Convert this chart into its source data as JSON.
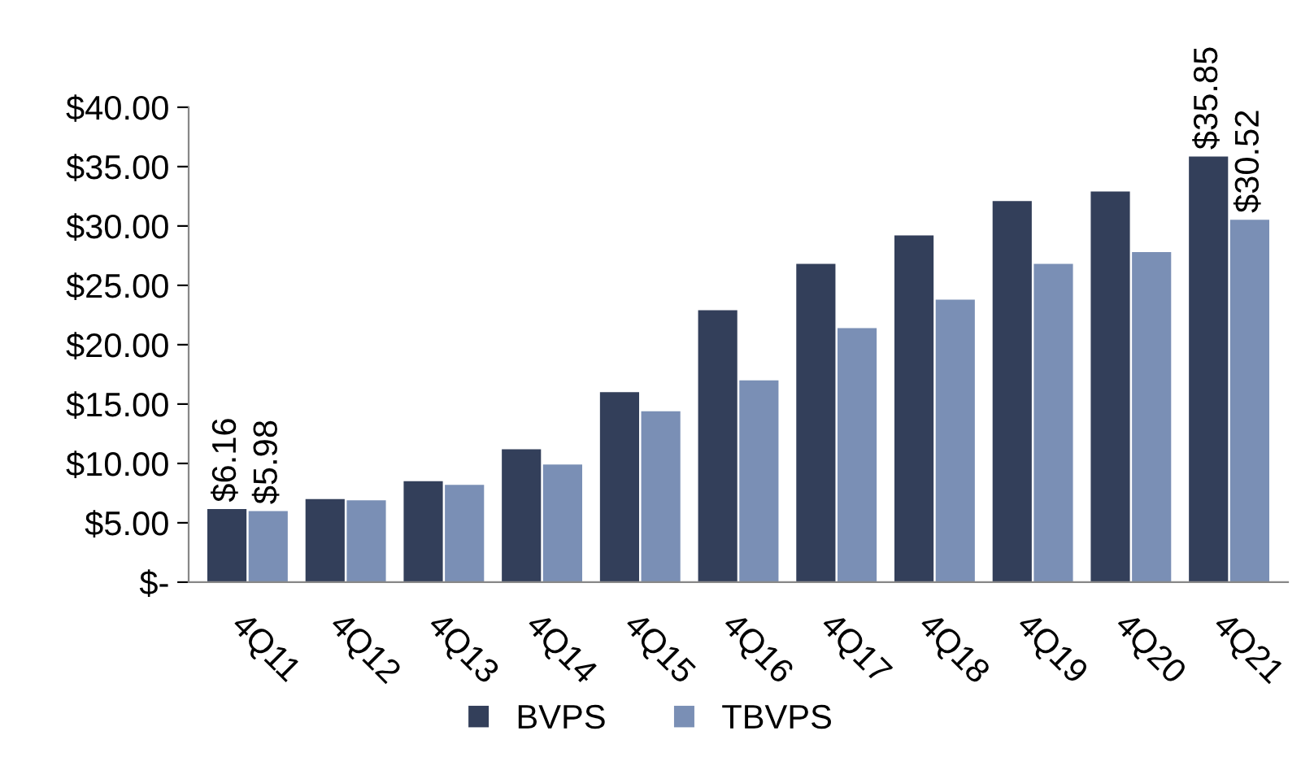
{
  "chart_data": {
    "type": "bar",
    "categories": [
      "4Q11",
      "4Q12",
      "4Q13",
      "4Q14",
      "4Q15",
      "4Q16",
      "4Q17",
      "4Q18",
      "4Q19",
      "4Q20",
      "4Q21"
    ],
    "series": [
      {
        "name": "BVPS",
        "color": "#333f5a",
        "values": [
          6.16,
          7.0,
          8.5,
          11.2,
          16.0,
          22.9,
          26.8,
          29.2,
          32.1,
          32.9,
          35.85
        ],
        "value_labels": [
          "$6.16",
          null,
          null,
          null,
          null,
          null,
          null,
          null,
          null,
          null,
          "$35.85"
        ]
      },
      {
        "name": "TBVPS",
        "color": "#7a8fb5",
        "values": [
          5.98,
          6.9,
          8.2,
          9.9,
          14.4,
          17.0,
          21.4,
          23.8,
          26.8,
          27.8,
          30.52
        ],
        "value_labels": [
          "$5.98",
          null,
          null,
          null,
          null,
          null,
          null,
          null,
          null,
          null,
          "$30.52"
        ]
      }
    ],
    "ylim": [
      0,
      40
    ],
    "yticks": [
      {
        "value": 0,
        "label": "$-"
      },
      {
        "value": 5,
        "label": "$5.00"
      },
      {
        "value": 10,
        "label": "$10.00"
      },
      {
        "value": 15,
        "label": "$15.00"
      },
      {
        "value": 20,
        "label": "$20.00"
      },
      {
        "value": 25,
        "label": "$25.00"
      },
      {
        "value": 30,
        "label": "$30.00"
      },
      {
        "value": 35,
        "label": "$35.00"
      },
      {
        "value": 40,
        "label": "$40.00"
      }
    ],
    "grid": false,
    "legend": "bottom"
  }
}
